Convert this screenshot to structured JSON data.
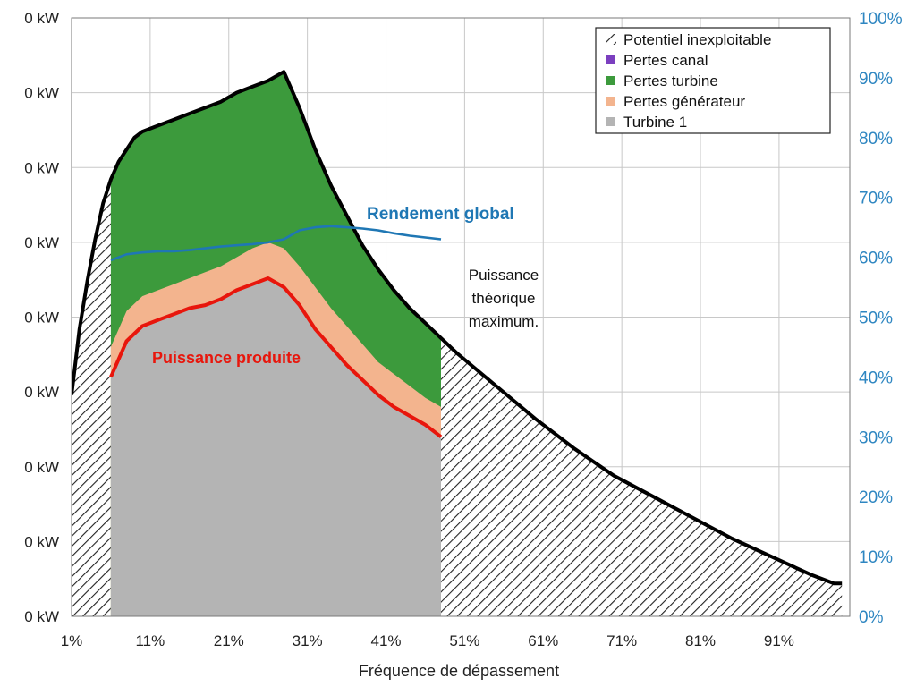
{
  "chart_data": {
    "type": "area",
    "xlabel": "Fréquence de dépassement",
    "x_ticks": [
      "1%",
      "11%",
      "21%",
      "31%",
      "41%",
      "51%",
      "61%",
      "71%",
      "81%",
      "91%"
    ],
    "x_range": [
      1,
      100
    ],
    "y_left_ticks": [
      "0 kW",
      "0 kW",
      "0 kW",
      "0 kW",
      "0 kW",
      "0 kW",
      "0 kW",
      "0 kW",
      "0 kW"
    ],
    "y_right_ticks": [
      "0%",
      "10%",
      "20%",
      "30%",
      "40%",
      "50%",
      "60%",
      "70%",
      "80%",
      "90%",
      "100%"
    ],
    "y_right_range": [
      0,
      100
    ],
    "grid": true,
    "legend_position": "top-right",
    "legend": [
      {
        "label": "Potentiel inexploitable",
        "swatch": "hatch"
      },
      {
        "label": "Pertes canal",
        "color": "#7b3fbf"
      },
      {
        "label": "Pertes turbine",
        "color": "#3c9a3c"
      },
      {
        "label": "Pertes générateur",
        "color": "#f3b48e"
      },
      {
        "label": "Turbine 1",
        "color": "#b4b4b4"
      }
    ],
    "colors": {
      "hatch_bg": "#ffffff",
      "hatch_line": "#222222",
      "turbine": "#b4b4b4",
      "generator": "#f3b48e",
      "turbine_loss": "#3c9a3c",
      "theoretical": "#000000",
      "produced": "#e8160c",
      "efficiency": "#1f77b4"
    },
    "series": [
      {
        "name": "Puissance théorique maximum.",
        "x": [
          1,
          2,
          3,
          4,
          5,
          6,
          7,
          8,
          9,
          10,
          12,
          14,
          16,
          18,
          20,
          22,
          24,
          26,
          28,
          30,
          32,
          34,
          36,
          38,
          40,
          42,
          44,
          46,
          48,
          50,
          55,
          60,
          65,
          70,
          75,
          80,
          85,
          90,
          95,
          98,
          99
        ],
        "values": [
          37,
          48,
          56,
          63,
          69,
          73,
          76,
          78,
          80,
          81,
          82,
          83,
          84,
          85,
          86,
          87.5,
          88.5,
          89.5,
          91,
          85,
          78,
          72,
          67,
          62,
          58,
          54.5,
          51.5,
          49,
          46.5,
          44,
          38.5,
          33,
          28,
          23.5,
          20,
          16.5,
          13,
          10,
          7,
          5.5,
          5.5
        ]
      },
      {
        "name": "Puissance produite",
        "x": [
          6,
          8,
          10,
          12,
          14,
          16,
          18,
          20,
          22,
          24,
          26,
          28,
          30,
          32,
          34,
          36,
          38,
          40,
          42,
          44,
          46,
          48
        ],
        "values": [
          40,
          46,
          48.5,
          49.5,
          50.5,
          51.5,
          52,
          53,
          54.5,
          55.5,
          56.5,
          55,
          52,
          48,
          45,
          42,
          39.5,
          37,
          35,
          33.5,
          32,
          30
        ]
      },
      {
        "name": "Pertes générateur",
        "x": [
          6,
          8,
          10,
          12,
          14,
          16,
          18,
          20,
          22,
          24,
          26,
          28,
          30,
          32,
          34,
          36,
          38,
          40,
          42,
          44,
          46,
          48
        ],
        "values": [
          45,
          51,
          53.5,
          54.5,
          55.5,
          56.5,
          57.5,
          58.5,
          60,
          61.5,
          62.5,
          61.5,
          58.5,
          55,
          51.5,
          48.5,
          45.5,
          42.5,
          40.5,
          38.5,
          36.5,
          35
        ]
      },
      {
        "name": "Rendement global",
        "axis": "right",
        "x": [
          6,
          8,
          10,
          12,
          14,
          16,
          18,
          20,
          22,
          24,
          26,
          28,
          30,
          32,
          34,
          36,
          38,
          40,
          42,
          44,
          46,
          48
        ],
        "values": [
          59.5,
          60.5,
          60.8,
          61,
          61,
          61.2,
          61.5,
          61.8,
          62,
          62.2,
          62.5,
          63,
          64.5,
          65,
          65.2,
          65,
          64.8,
          64.5,
          64,
          63.6,
          63.3,
          63
        ]
      }
    ],
    "annotations": {
      "efficiency": "Rendement global",
      "produced": "Puissance produite",
      "theoretical": [
        "Puissance",
        "théorique",
        "maximum."
      ]
    }
  }
}
